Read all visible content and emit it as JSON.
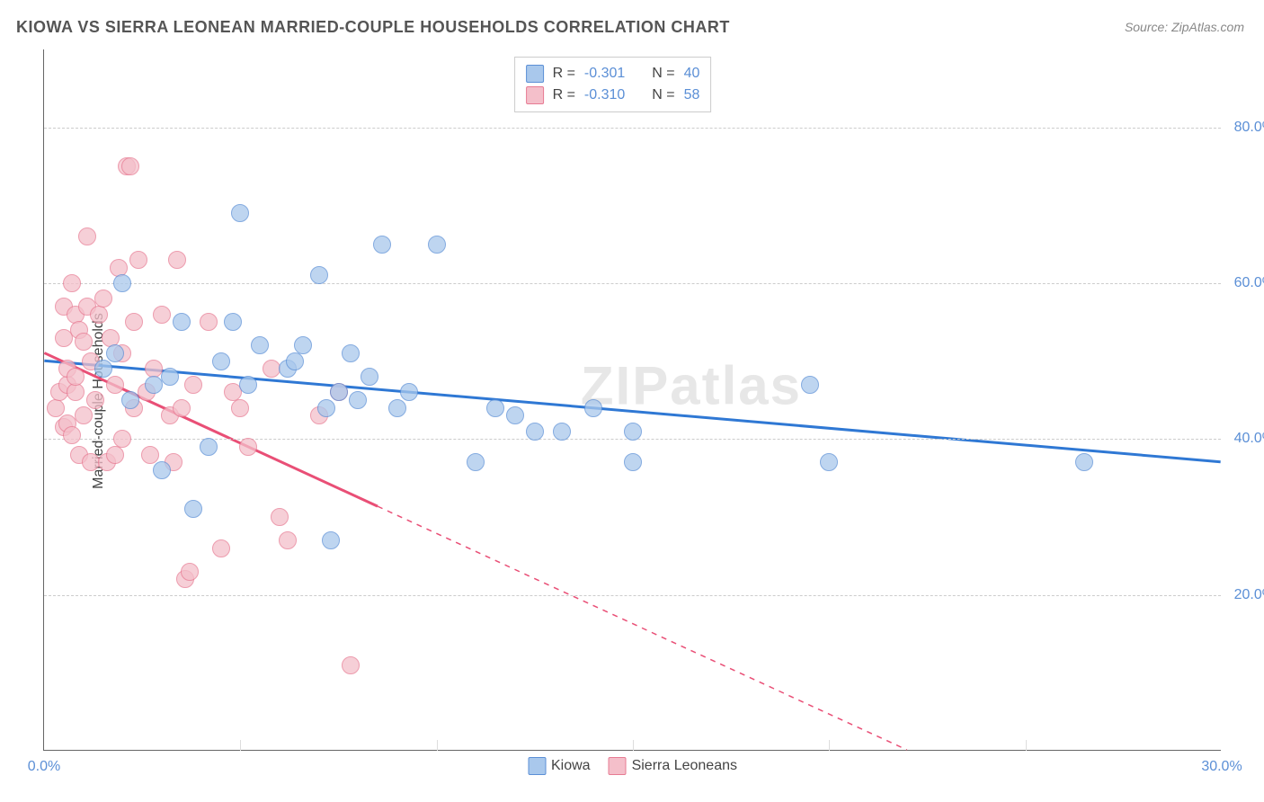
{
  "title": "KIOWA VS SIERRA LEONEAN MARRIED-COUPLE HOUSEHOLDS CORRELATION CHART",
  "source": "Source: ZipAtlas.com",
  "watermark": "ZIPatlas",
  "y_axis_label": "Married-couple Households",
  "chart": {
    "type": "scatter",
    "xlim": [
      0,
      30
    ],
    "ylim": [
      0,
      90
    ],
    "x_ticks": [
      0,
      30
    ],
    "x_tick_labels": [
      "0.0%",
      "30.0%"
    ],
    "x_minor_ticks": [
      5,
      10,
      15,
      20,
      25
    ],
    "y_ticks": [
      20,
      40,
      60,
      80
    ],
    "y_tick_labels": [
      "20.0%",
      "40.0%",
      "60.0%",
      "80.0%"
    ],
    "grid_color": "#cccccc",
    "background_color": "#ffffff",
    "label_color": "#5b8fd6",
    "label_fontsize": 16,
    "title_fontsize": 18,
    "marker_size": 20,
    "series": [
      {
        "name": "Kiowa",
        "fill_color": "#a9c8ec",
        "stroke_color": "#5b8fd6",
        "line_color": "#2f78d4",
        "line_width": 3,
        "r_value": "-0.301",
        "n_value": "40",
        "trend": {
          "x1": 0,
          "y1": 50,
          "x2": 30,
          "y2": 37,
          "solid_until_x": 30
        },
        "points": [
          [
            2.0,
            60
          ],
          [
            2.8,
            47
          ],
          [
            3.0,
            36
          ],
          [
            3.2,
            48
          ],
          [
            3.5,
            55
          ],
          [
            3.8,
            31
          ],
          [
            4.5,
            50
          ],
          [
            4.8,
            55
          ],
          [
            5.0,
            69
          ],
          [
            5.2,
            47
          ],
          [
            5.5,
            52
          ],
          [
            4.2,
            39
          ],
          [
            6.2,
            49
          ],
          [
            6.4,
            50
          ],
          [
            6.6,
            52
          ],
          [
            7.0,
            61
          ],
          [
            7.2,
            44
          ],
          [
            7.3,
            27
          ],
          [
            7.5,
            46
          ],
          [
            7.8,
            51
          ],
          [
            8.0,
            45
          ],
          [
            8.3,
            48
          ],
          [
            8.6,
            65
          ],
          [
            9.0,
            44
          ],
          [
            9.3,
            46
          ],
          [
            10.0,
            65
          ],
          [
            11.0,
            37
          ],
          [
            11.5,
            44
          ],
          [
            12.0,
            43
          ],
          [
            12.5,
            41
          ],
          [
            13.2,
            41
          ],
          [
            14.0,
            44
          ],
          [
            15.0,
            37
          ],
          [
            15.0,
            41
          ],
          [
            19.5,
            47
          ],
          [
            20.0,
            37
          ],
          [
            26.5,
            37
          ],
          [
            1.5,
            49
          ],
          [
            1.8,
            51
          ],
          [
            2.2,
            45
          ]
        ]
      },
      {
        "name": "Sierra Leoneans",
        "fill_color": "#f4bfca",
        "stroke_color": "#e77b93",
        "line_color": "#e94f76",
        "line_width": 3,
        "r_value": "-0.310",
        "n_value": "58",
        "trend": {
          "x1": 0,
          "y1": 51,
          "x2": 22,
          "y2": 0,
          "solid_until_x": 8.5
        },
        "points": [
          [
            0.3,
            44
          ],
          [
            0.4,
            46
          ],
          [
            0.5,
            41.5
          ],
          [
            0.5,
            57
          ],
          [
            0.5,
            53
          ],
          [
            0.6,
            47
          ],
          [
            0.6,
            49
          ],
          [
            0.6,
            42
          ],
          [
            0.7,
            40.5
          ],
          [
            0.7,
            60
          ],
          [
            0.8,
            56
          ],
          [
            0.8,
            46
          ],
          [
            0.8,
            48
          ],
          [
            0.9,
            54
          ],
          [
            0.9,
            38
          ],
          [
            1.0,
            43
          ],
          [
            1.0,
            52.5
          ],
          [
            1.1,
            66
          ],
          [
            1.1,
            57
          ],
          [
            1.2,
            37
          ],
          [
            1.2,
            50
          ],
          [
            1.3,
            45
          ],
          [
            1.4,
            56
          ],
          [
            1.5,
            58
          ],
          [
            1.6,
            37
          ],
          [
            1.7,
            53
          ],
          [
            1.8,
            47
          ],
          [
            1.8,
            38
          ],
          [
            1.9,
            62
          ],
          [
            2.0,
            40
          ],
          [
            2.0,
            51
          ],
          [
            2.1,
            75
          ],
          [
            2.2,
            75
          ],
          [
            2.3,
            44
          ],
          [
            2.3,
            55
          ],
          [
            2.4,
            63
          ],
          [
            2.6,
            46
          ],
          [
            2.7,
            38
          ],
          [
            2.8,
            49
          ],
          [
            3.0,
            56
          ],
          [
            3.2,
            43
          ],
          [
            3.3,
            37
          ],
          [
            3.4,
            63
          ],
          [
            3.5,
            44
          ],
          [
            3.6,
            22
          ],
          [
            3.7,
            23
          ],
          [
            3.8,
            47
          ],
          [
            4.2,
            55
          ],
          [
            4.5,
            26
          ],
          [
            4.8,
            46
          ],
          [
            5.0,
            44
          ],
          [
            5.2,
            39
          ],
          [
            5.8,
            49
          ],
          [
            6.0,
            30
          ],
          [
            6.2,
            27
          ],
          [
            7.0,
            43
          ],
          [
            7.5,
            46
          ],
          [
            7.8,
            11
          ]
        ]
      }
    ],
    "legend_bottom": [
      {
        "label": "Kiowa",
        "fill": "#a9c8ec",
        "stroke": "#5b8fd6"
      },
      {
        "label": "Sierra Leoneans",
        "fill": "#f4bfca",
        "stroke": "#e77b93"
      }
    ]
  }
}
